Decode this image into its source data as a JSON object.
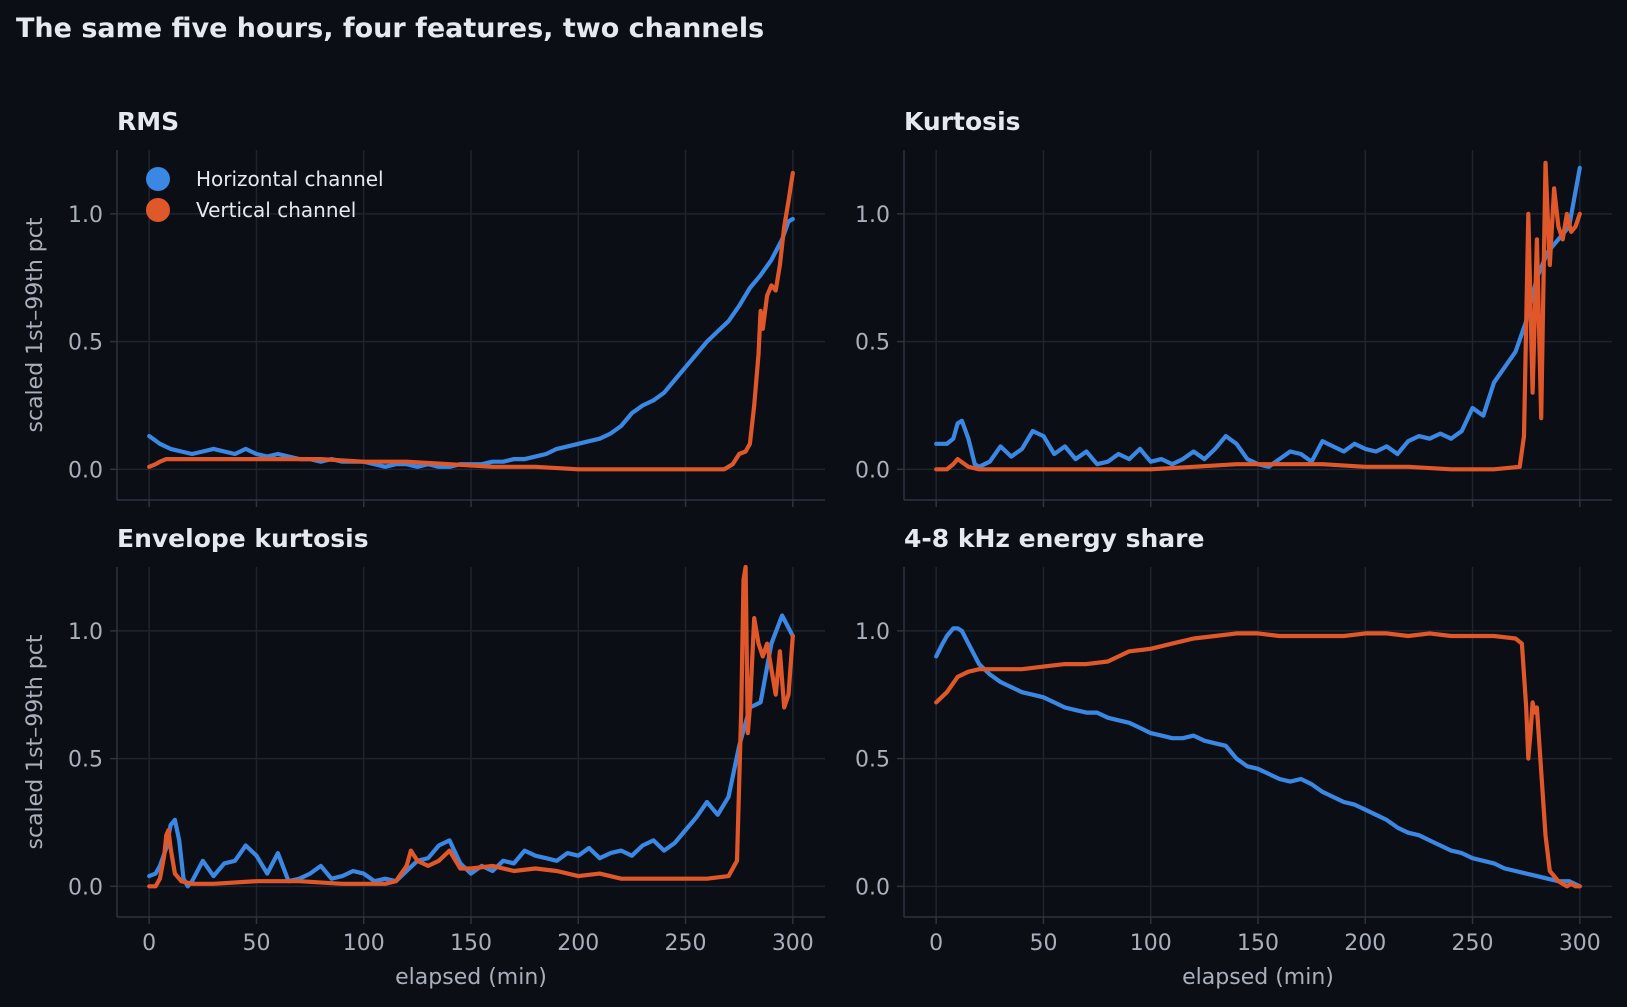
{
  "title": "The same five hours, four features, two channels",
  "colors": {
    "horizontal": "#3b87e4",
    "vertical": "#e0582a"
  },
  "legend": [
    {
      "name": "Horizontal channel",
      "color": "#3b87e4"
    },
    {
      "name": "Vertical channel",
      "color": "#e0582a"
    }
  ],
  "chart_data": [
    {
      "type": "line",
      "title": "RMS",
      "xlabel": "",
      "ylabel": "scaled 1st–99th pct",
      "xlim": [
        -15,
        315
      ],
      "ylim": [
        -0.12,
        1.25
      ],
      "xticks": [
        "0",
        "50",
        "100",
        "150",
        "200",
        "250",
        "300"
      ],
      "yticks": [
        "0.0",
        "0.5",
        "1.0"
      ],
      "legend": "top-left",
      "series": [
        {
          "name": "Horizontal channel",
          "x": [
            0,
            5,
            10,
            15,
            20,
            25,
            30,
            35,
            40,
            45,
            50,
            55,
            60,
            65,
            70,
            75,
            80,
            85,
            90,
            95,
            100,
            105,
            110,
            115,
            120,
            125,
            130,
            135,
            140,
            145,
            150,
            155,
            160,
            165,
            170,
            175,
            180,
            185,
            190,
            195,
            200,
            205,
            210,
            215,
            220,
            225,
            230,
            235,
            240,
            245,
            250,
            255,
            260,
            265,
            270,
            275,
            280,
            285,
            290,
            295,
            298,
            300
          ],
          "y": [
            0.13,
            0.1,
            0.08,
            0.07,
            0.06,
            0.07,
            0.08,
            0.07,
            0.06,
            0.08,
            0.06,
            0.05,
            0.06,
            0.05,
            0.04,
            0.04,
            0.03,
            0.04,
            0.03,
            0.03,
            0.03,
            0.02,
            0.01,
            0.02,
            0.02,
            0.01,
            0.02,
            0.01,
            0.01,
            0.02,
            0.02,
            0.02,
            0.03,
            0.03,
            0.04,
            0.04,
            0.05,
            0.06,
            0.08,
            0.09,
            0.1,
            0.11,
            0.12,
            0.14,
            0.17,
            0.22,
            0.25,
            0.27,
            0.3,
            0.35,
            0.4,
            0.45,
            0.5,
            0.54,
            0.58,
            0.64,
            0.71,
            0.76,
            0.82,
            0.9,
            0.97,
            0.98
          ]
        },
        {
          "name": "Vertical channel",
          "x": [
            0,
            3,
            5,
            8,
            10,
            15,
            20,
            40,
            60,
            80,
            100,
            120,
            140,
            160,
            180,
            200,
            220,
            240,
            260,
            268,
            272,
            275,
            278,
            280,
            282,
            284,
            285,
            286,
            288,
            290,
            292,
            294,
            296,
            298,
            300
          ],
          "y": [
            0.01,
            0.02,
            0.03,
            0.04,
            0.04,
            0.04,
            0.04,
            0.04,
            0.04,
            0.04,
            0.03,
            0.03,
            0.02,
            0.01,
            0.01,
            0.0,
            0.0,
            0.0,
            0.0,
            0.0,
            0.02,
            0.06,
            0.07,
            0.1,
            0.25,
            0.45,
            0.62,
            0.55,
            0.68,
            0.72,
            0.7,
            0.8,
            0.95,
            1.05,
            1.16
          ]
        }
      ]
    },
    {
      "type": "line",
      "title": "Kurtosis",
      "xlabel": "",
      "ylabel": "",
      "xlim": [
        -15,
        315
      ],
      "ylim": [
        -0.12,
        1.25
      ],
      "xticks": [
        "0",
        "50",
        "100",
        "150",
        "200",
        "250",
        "300"
      ],
      "yticks": [
        "0.0",
        "0.5",
        "1.0"
      ],
      "series": [
        {
          "name": "Horizontal channel",
          "x": [
            0,
            5,
            8,
            10,
            12,
            15,
            18,
            20,
            25,
            30,
            35,
            40,
            45,
            50,
            55,
            60,
            65,
            70,
            75,
            80,
            85,
            90,
            95,
            100,
            105,
            110,
            115,
            120,
            125,
            130,
            135,
            140,
            145,
            150,
            155,
            160,
            165,
            170,
            175,
            180,
            185,
            190,
            195,
            200,
            205,
            210,
            215,
            220,
            225,
            230,
            235,
            240,
            245,
            250,
            255,
            260,
            265,
            270,
            275,
            280,
            285,
            290,
            295,
            300
          ],
          "y": [
            0.1,
            0.1,
            0.12,
            0.18,
            0.19,
            0.12,
            0.02,
            0.01,
            0.03,
            0.09,
            0.05,
            0.08,
            0.15,
            0.13,
            0.06,
            0.09,
            0.04,
            0.07,
            0.02,
            0.03,
            0.06,
            0.04,
            0.08,
            0.03,
            0.04,
            0.02,
            0.04,
            0.07,
            0.04,
            0.08,
            0.13,
            0.1,
            0.04,
            0.02,
            0.01,
            0.04,
            0.07,
            0.06,
            0.03,
            0.11,
            0.09,
            0.07,
            0.1,
            0.08,
            0.07,
            0.09,
            0.06,
            0.11,
            0.13,
            0.12,
            0.14,
            0.12,
            0.15,
            0.24,
            0.21,
            0.34,
            0.4,
            0.46,
            0.58,
            0.75,
            0.85,
            0.9,
            0.95,
            1.18
          ]
        },
        {
          "name": "Vertical channel",
          "x": [
            0,
            5,
            8,
            10,
            15,
            20,
            50,
            100,
            120,
            140,
            160,
            180,
            200,
            220,
            240,
            260,
            272,
            274,
            276,
            278,
            280,
            282,
            284,
            286,
            288,
            290,
            292,
            294,
            296,
            298,
            300
          ],
          "y": [
            0.0,
            0.0,
            0.02,
            0.04,
            0.01,
            0.0,
            0.0,
            0.0,
            0.01,
            0.02,
            0.02,
            0.02,
            0.01,
            0.01,
            0.0,
            0.0,
            0.01,
            0.13,
            1.0,
            0.3,
            0.9,
            0.2,
            1.2,
            0.8,
            1.1,
            0.95,
            0.9,
            1.0,
            0.93,
            0.95,
            1.0
          ]
        }
      ]
    },
    {
      "type": "line",
      "title": "Envelope kurtosis",
      "xlabel": "elapsed (min)",
      "ylabel": "scaled 1st–99th pct",
      "xlim": [
        -15,
        315
      ],
      "ylim": [
        -0.12,
        1.25
      ],
      "xticks": [
        "0",
        "50",
        "100",
        "150",
        "200",
        "250",
        "300"
      ],
      "yticks": [
        "0.0",
        "0.5",
        "1.0"
      ],
      "series": [
        {
          "name": "Horizontal channel",
          "x": [
            0,
            3,
            5,
            8,
            10,
            12,
            14,
            16,
            18,
            20,
            25,
            30,
            35,
            40,
            45,
            50,
            55,
            60,
            65,
            70,
            75,
            80,
            85,
            90,
            95,
            100,
            105,
            110,
            115,
            120,
            125,
            130,
            135,
            140,
            145,
            150,
            155,
            160,
            165,
            170,
            175,
            180,
            185,
            190,
            195,
            200,
            205,
            210,
            215,
            220,
            225,
            230,
            235,
            240,
            245,
            250,
            255,
            260,
            265,
            270,
            275,
            280,
            285,
            290,
            295,
            300
          ],
          "y": [
            0.04,
            0.05,
            0.08,
            0.15,
            0.24,
            0.26,
            0.18,
            0.03,
            0.0,
            0.02,
            0.1,
            0.04,
            0.09,
            0.1,
            0.16,
            0.12,
            0.05,
            0.13,
            0.02,
            0.03,
            0.05,
            0.08,
            0.03,
            0.04,
            0.06,
            0.05,
            0.02,
            0.03,
            0.02,
            0.06,
            0.1,
            0.11,
            0.16,
            0.18,
            0.09,
            0.05,
            0.08,
            0.06,
            0.1,
            0.09,
            0.14,
            0.12,
            0.11,
            0.1,
            0.13,
            0.12,
            0.15,
            0.11,
            0.13,
            0.14,
            0.12,
            0.16,
            0.18,
            0.14,
            0.17,
            0.22,
            0.27,
            0.33,
            0.28,
            0.35,
            0.55,
            0.7,
            0.72,
            0.95,
            1.06,
            0.98
          ]
        },
        {
          "name": "Vertical channel",
          "x": [
            0,
            3,
            5,
            7,
            8,
            9,
            10,
            12,
            15,
            20,
            30,
            50,
            70,
            90,
            110,
            115,
            120,
            122,
            125,
            130,
            135,
            140,
            145,
            150,
            160,
            170,
            180,
            190,
            200,
            210,
            220,
            240,
            260,
            270,
            274,
            276,
            277,
            278,
            279,
            280,
            282,
            284,
            286,
            288,
            290,
            292,
            294,
            296,
            298,
            300
          ],
          "y": [
            0.0,
            0.0,
            0.03,
            0.12,
            0.2,
            0.22,
            0.15,
            0.05,
            0.02,
            0.01,
            0.01,
            0.02,
            0.02,
            0.01,
            0.01,
            0.02,
            0.08,
            0.14,
            0.1,
            0.08,
            0.1,
            0.14,
            0.07,
            0.07,
            0.08,
            0.06,
            0.07,
            0.06,
            0.04,
            0.05,
            0.03,
            0.03,
            0.03,
            0.04,
            0.1,
            0.7,
            1.2,
            1.25,
            0.6,
            0.7,
            1.05,
            0.95,
            0.9,
            0.95,
            0.85,
            0.75,
            0.92,
            0.7,
            0.75,
            0.98
          ]
        }
      ]
    },
    {
      "type": "line",
      "title": "4-8 kHz energy share",
      "xlabel": "elapsed (min)",
      "ylabel": "",
      "xlim": [
        -15,
        315
      ],
      "ylim": [
        -0.12,
        1.25
      ],
      "xticks": [
        "0",
        "50",
        "100",
        "150",
        "200",
        "250",
        "300"
      ],
      "yticks": [
        "0.0",
        "0.5",
        "1.0"
      ],
      "series": [
        {
          "name": "Horizontal channel",
          "x": [
            0,
            3,
            5,
            8,
            10,
            12,
            15,
            20,
            25,
            30,
            35,
            40,
            45,
            50,
            55,
            60,
            65,
            70,
            75,
            80,
            85,
            90,
            95,
            100,
            105,
            110,
            115,
            120,
            125,
            130,
            135,
            140,
            145,
            150,
            155,
            160,
            165,
            170,
            175,
            180,
            185,
            190,
            195,
            200,
            205,
            210,
            215,
            220,
            225,
            230,
            235,
            240,
            245,
            250,
            255,
            260,
            265,
            270,
            275,
            280,
            285,
            290,
            295,
            300
          ],
          "y": [
            0.9,
            0.95,
            0.98,
            1.01,
            1.01,
            1.0,
            0.95,
            0.87,
            0.83,
            0.8,
            0.78,
            0.76,
            0.75,
            0.74,
            0.72,
            0.7,
            0.69,
            0.68,
            0.68,
            0.66,
            0.65,
            0.64,
            0.62,
            0.6,
            0.59,
            0.58,
            0.58,
            0.59,
            0.57,
            0.56,
            0.55,
            0.5,
            0.47,
            0.46,
            0.44,
            0.42,
            0.41,
            0.42,
            0.4,
            0.37,
            0.35,
            0.33,
            0.32,
            0.3,
            0.28,
            0.26,
            0.23,
            0.21,
            0.2,
            0.18,
            0.16,
            0.14,
            0.13,
            0.11,
            0.1,
            0.09,
            0.07,
            0.06,
            0.05,
            0.04,
            0.03,
            0.02,
            0.02,
            0.0
          ]
        },
        {
          "name": "Vertical channel",
          "x": [
            0,
            5,
            10,
            15,
            20,
            25,
            30,
            40,
            50,
            60,
            70,
            80,
            90,
            100,
            110,
            120,
            130,
            140,
            150,
            160,
            170,
            180,
            190,
            200,
            210,
            220,
            230,
            240,
            250,
            260,
            270,
            273,
            275,
            276,
            277,
            278,
            279,
            280,
            282,
            284,
            286,
            288,
            290,
            292,
            294,
            296,
            298,
            300
          ],
          "y": [
            0.72,
            0.76,
            0.82,
            0.84,
            0.85,
            0.85,
            0.85,
            0.85,
            0.86,
            0.87,
            0.87,
            0.88,
            0.92,
            0.93,
            0.95,
            0.97,
            0.98,
            0.99,
            0.99,
            0.98,
            0.98,
            0.98,
            0.98,
            0.99,
            0.99,
            0.98,
            0.99,
            0.98,
            0.98,
            0.98,
            0.97,
            0.95,
            0.7,
            0.5,
            0.6,
            0.72,
            0.68,
            0.7,
            0.45,
            0.2,
            0.06,
            0.04,
            0.02,
            0.01,
            0.0,
            0.01,
            0.0,
            0.0
          ]
        }
      ]
    }
  ]
}
